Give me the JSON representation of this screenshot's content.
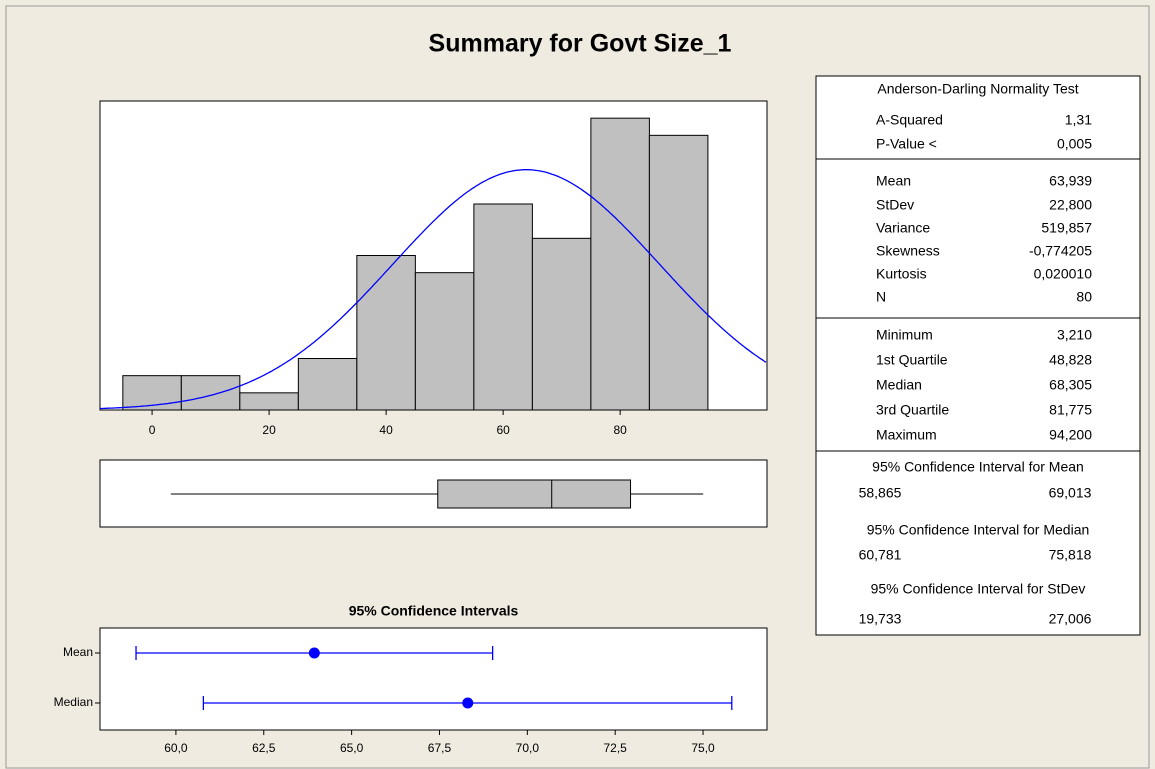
{
  "title": "Summary for Govt Size_1",
  "chart_data": [
    {
      "type": "histogram",
      "bins": [
        -5,
        5,
        15,
        25,
        35,
        45,
        55,
        65,
        75,
        85,
        95
      ],
      "counts": [
        2,
        2,
        1,
        3,
        9,
        8,
        12,
        10,
        17,
        16
      ],
      "color": "#c0c0c0",
      "curve_color": "#0000ff",
      "boxplot": true,
      "xlim": [
        -8.9,
        105.1
      ],
      "ylim": [
        0,
        18
      ],
      "xticks": [
        0,
        20,
        40,
        60,
        80
      ]
    },
    {
      "type": "errorbar",
      "title": "95% Confidence Intervals",
      "categories": [
        "Mean",
        "Median"
      ],
      "color": "#0000ff",
      "xlim": [
        57.84,
        76.82
      ],
      "xticks": [
        {
          "value": 60,
          "label": "60,0"
        },
        {
          "value": 62.5,
          "label": "62,5"
        },
        {
          "value": 65,
          "label": "65,0"
        },
        {
          "value": 67.5,
          "label": "67,5"
        },
        {
          "value": 70,
          "label": "70,0"
        },
        {
          "value": 72.5,
          "label": "72,5"
        },
        {
          "value": 75,
          "label": "75,0"
        }
      ]
    }
  ],
  "stats": [
    {
      "header": "Anderson-Darling Normality Test",
      "rows": [
        [
          "A-Squared",
          {
            "value": 1.31,
            "label": "1,31"
          }
        ],
        [
          "P-Value <",
          {
            "value": 0.005,
            "label": "0,005"
          }
        ]
      ]
    },
    {
      "rows": [
        [
          "Mean",
          {
            "value": 63.939,
            "label": "63,939"
          }
        ],
        [
          "StDev",
          {
            "value": 22.8,
            "label": "22,800"
          }
        ],
        [
          "Variance",
          {
            "value": 519.857,
            "label": "519,857"
          }
        ],
        [
          "Skewness",
          {
            "value": -0.774205,
            "label": "-0,774205"
          }
        ],
        [
          "Kurtosis",
          {
            "value": 0.02001,
            "label": "0,020010"
          }
        ],
        [
          "N",
          80
        ]
      ]
    },
    {
      "rows": [
        [
          "Minimum",
          {
            "value": 3.21,
            "label": "3,210"
          }
        ],
        [
          "1st Quartile",
          {
            "value": 48.828,
            "label": "48,828"
          }
        ],
        [
          "Median",
          {
            "value": 68.305,
            "label": "68,305"
          }
        ],
        [
          "3rd Quartile",
          {
            "value": 81.775,
            "label": "81,775"
          }
        ],
        [
          "Maximum",
          {
            "value": 94.2,
            "label": "94,200"
          }
        ]
      ]
    },
    {
      "header": "95% Confidence Interval for Mean",
      "rows": [
        [
          {
            "value": 58.865,
            "label": "58,865"
          },
          {
            "value": 69.013,
            "label": "69,013"
          }
        ]
      ]
    },
    {
      "header": "95% Confidence Interval for Median",
      "rows": [
        [
          {
            "value": 60.781,
            "label": "60,781"
          },
          {
            "value": 75.818,
            "label": "75,818"
          }
        ]
      ]
    },
    {
      "header": "95% Confidence Interval for StDev",
      "rows": [
        [
          {
            "value": 19.733,
            "label": "19,733"
          },
          {
            "value": 27.006,
            "label": "27,006"
          }
        ]
      ]
    }
  ]
}
